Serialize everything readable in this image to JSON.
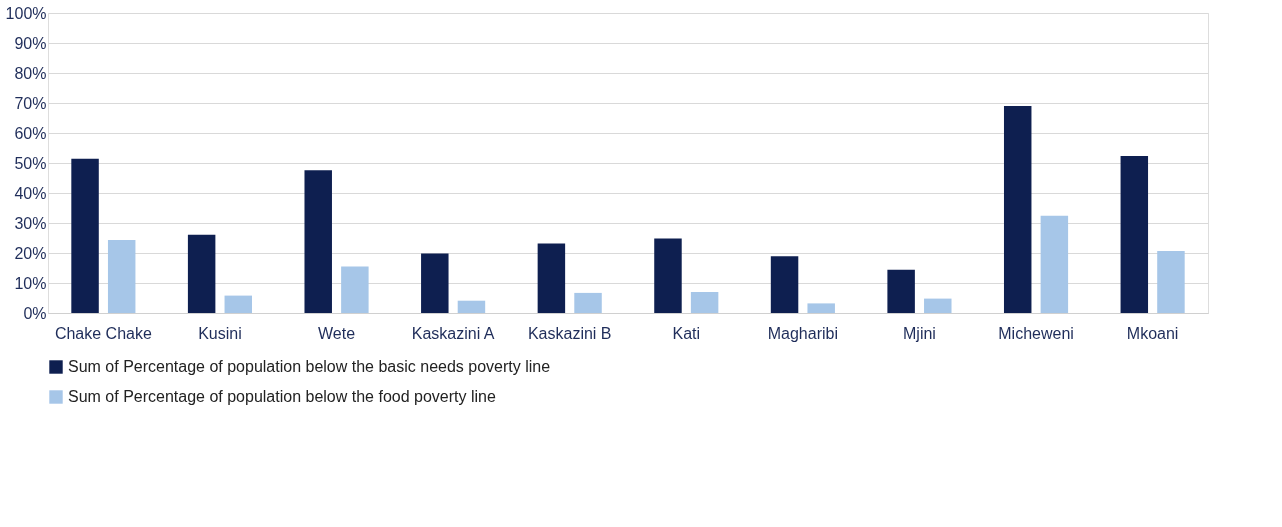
{
  "chart_data": {
    "type": "bar",
    "categories": [
      "Chake Chake",
      "Kusini",
      "Wete",
      "Kaskazini A",
      "Kaskazini B",
      "Kati",
      "Magharibi",
      "Mjini",
      "Micheweni",
      "Mkoani"
    ],
    "series": [
      {
        "name": "Sum of Percentage of population below the basic needs poverty line",
        "color": "#0e1f50",
        "values": [
          51.4,
          26.1,
          47.6,
          19.8,
          23.2,
          24.8,
          18.9,
          14.4,
          69.0,
          52.3
        ]
      },
      {
        "name": "Sum of Percentage of population below the food poverty line",
        "color": "#a6c6e8",
        "values": [
          24.3,
          5.8,
          15.5,
          4.1,
          6.7,
          7.0,
          3.2,
          4.8,
          32.4,
          20.7
        ]
      }
    ],
    "ylim": [
      0,
      100
    ],
    "yticks": [
      {
        "value": 0,
        "label": "0%"
      },
      {
        "value": 10,
        "label": "10%"
      },
      {
        "value": 20,
        "label": "20%"
      },
      {
        "value": 30,
        "label": "30%"
      },
      {
        "value": 40,
        "label": "40%"
      },
      {
        "value": 50,
        "label": "50%"
      },
      {
        "value": 60,
        "label": "60%"
      },
      {
        "value": 70,
        "label": "70%"
      },
      {
        "value": 80,
        "label": "80%"
      },
      {
        "value": 90,
        "label": "90%"
      },
      {
        "value": 100,
        "label": "100%"
      }
    ],
    "grid": "y",
    "legend": "bottom"
  }
}
